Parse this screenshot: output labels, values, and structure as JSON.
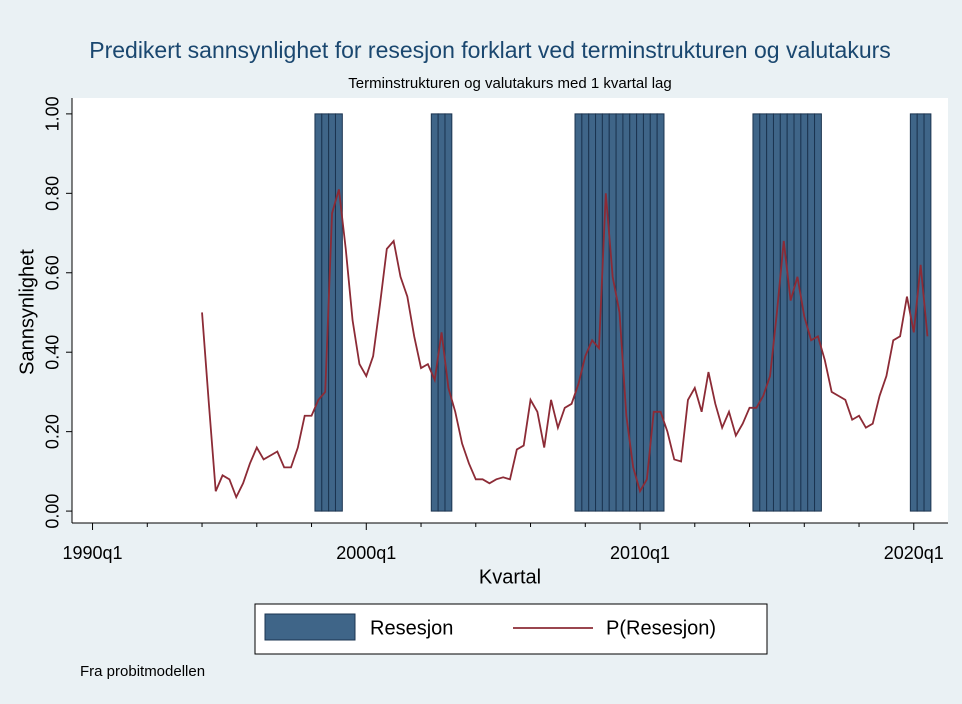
{
  "chart_data": {
    "type": "bar_line",
    "title": "Predikert sannsynlighet for resesjon forklart ved terminstrukturen og valutakurs",
    "subtitle": "Terminstrukturen og valutakurs med 1 kvartal lag",
    "x_label": "Kvartal",
    "y_label": "Sannsynlighet",
    "note": "Fra probitmodellen",
    "x": [
      "1994q1",
      "1994q2",
      "1994q3",
      "1994q4",
      "1995q1",
      "1995q2",
      "1995q3",
      "1995q4",
      "1996q1",
      "1996q2",
      "1996q3",
      "1996q4",
      "1997q1",
      "1997q2",
      "1997q3",
      "1997q4",
      "1998q1",
      "1998q2",
      "1998q3",
      "1998q4",
      "1999q1",
      "1999q2",
      "1999q3",
      "1999q4",
      "2000q1",
      "2000q2",
      "2000q3",
      "2000q4",
      "2001q1",
      "2001q2",
      "2001q3",
      "2001q4",
      "2002q1",
      "2002q2",
      "2002q3",
      "2002q4",
      "2003q1",
      "2003q2",
      "2003q3",
      "2003q4",
      "2004q1",
      "2004q2",
      "2004q3",
      "2004q4",
      "2005q1",
      "2005q2",
      "2005q3",
      "2005q4",
      "2006q1",
      "2006q2",
      "2006q3",
      "2006q4",
      "2007q1",
      "2007q2",
      "2007q3",
      "2007q4",
      "2008q1",
      "2008q2",
      "2008q3",
      "2008q4",
      "2009q1",
      "2009q2",
      "2009q3",
      "2009q4",
      "2010q1",
      "2010q2",
      "2010q3",
      "2010q4",
      "2011q1",
      "2011q2",
      "2011q3",
      "2011q4",
      "2012q1",
      "2012q2",
      "2012q3",
      "2012q4",
      "2013q1",
      "2013q2",
      "2013q3",
      "2013q4",
      "2014q1",
      "2014q2",
      "2014q3",
      "2014q4",
      "2015q1",
      "2015q2",
      "2015q3",
      "2015q4",
      "2016q1",
      "2016q2",
      "2016q3",
      "2016q4",
      "2017q1",
      "2017q2",
      "2017q3",
      "2017q4",
      "2018q1",
      "2018q2",
      "2018q3",
      "2018q4",
      "2019q1",
      "2019q2",
      "2019q3",
      "2019q4",
      "2020q1",
      "2020q2",
      "2020q3"
    ],
    "series": [
      {
        "name": "Resesjon",
        "type": "bar",
        "color": "#3f6588",
        "edge_color": "#1b3450",
        "values": [
          0,
          0,
          0,
          0,
          0,
          0,
          0,
          0,
          0,
          0,
          0,
          0,
          0,
          0,
          0,
          0,
          0,
          1,
          1,
          1,
          1,
          0,
          0,
          0,
          0,
          0,
          0,
          0,
          0,
          0,
          0,
          0,
          0,
          0,
          1,
          1,
          1,
          0,
          0,
          0,
          0,
          0,
          0,
          0,
          0,
          0,
          0,
          0,
          0,
          0,
          0,
          0,
          0,
          0,
          0,
          1,
          1,
          1,
          1,
          1,
          1,
          1,
          1,
          1,
          1,
          1,
          1,
          1,
          0,
          0,
          0,
          0,
          0,
          0,
          0,
          0,
          0,
          0,
          0,
          0,
          0,
          1,
          1,
          1,
          1,
          1,
          1,
          1,
          1,
          1,
          1,
          0,
          0,
          0,
          0,
          0,
          0,
          0,
          0,
          0,
          0,
          0,
          0,
          0,
          1,
          1,
          1
        ]
      },
      {
        "name": "P(Resesjon)",
        "type": "line",
        "color": "#8c2b36",
        "values": [
          0.5,
          0.27,
          0.05,
          0.09,
          0.08,
          0.035,
          0.07,
          0.12,
          0.16,
          0.13,
          0.14,
          0.15,
          0.11,
          0.11,
          0.16,
          0.24,
          0.24,
          0.28,
          0.3,
          0.75,
          0.81,
          0.66,
          0.48,
          0.37,
          0.34,
          0.39,
          0.52,
          0.66,
          0.68,
          0.59,
          0.54,
          0.44,
          0.36,
          0.37,
          0.33,
          0.45,
          0.31,
          0.25,
          0.17,
          0.12,
          0.08,
          0.08,
          0.07,
          0.08,
          0.085,
          0.08,
          0.155,
          0.165,
          0.28,
          0.25,
          0.16,
          0.28,
          0.21,
          0.26,
          0.27,
          0.32,
          0.39,
          0.43,
          0.41,
          0.8,
          0.59,
          0.5,
          0.24,
          0.11,
          0.05,
          0.08,
          0.25,
          0.25,
          0.2,
          0.13,
          0.125,
          0.28,
          0.31,
          0.25,
          0.35,
          0.27,
          0.21,
          0.25,
          0.19,
          0.22,
          0.26,
          0.26,
          0.29,
          0.34,
          0.5,
          0.68,
          0.53,
          0.59,
          0.49,
          0.43,
          0.44,
          0.38,
          0.3,
          0.29,
          0.28,
          0.23,
          0.24,
          0.21,
          0.22,
          0.29,
          0.34,
          0.43,
          0.44,
          0.54,
          0.45,
          0.62,
          0.44
        ]
      }
    ],
    "xlim": [
      "1989q2",
      "2021q2"
    ],
    "xticks": [
      "1990q1",
      "2000q1",
      "2010q1",
      "2020q1"
    ],
    "xminorticks": [
      "1992q1",
      "1994q1",
      "1996q1",
      "1998q1",
      "2002q1",
      "2004q1",
      "2006q1",
      "2008q1",
      "2012q1",
      "2014q1",
      "2016q1",
      "2018q1"
    ],
    "ylim": [
      -0.03,
      1.04
    ],
    "yticks": [
      {
        "value": 0,
        "label": "0.00"
      },
      {
        "value": 0.2,
        "label": "0.20"
      },
      {
        "value": 0.4,
        "label": "0.40"
      },
      {
        "value": 0.6,
        "label": "0.60"
      },
      {
        "value": 0.8,
        "label": "0.80"
      },
      {
        "value": 1,
        "label": "1.00"
      }
    ],
    "legend": "bottom"
  }
}
